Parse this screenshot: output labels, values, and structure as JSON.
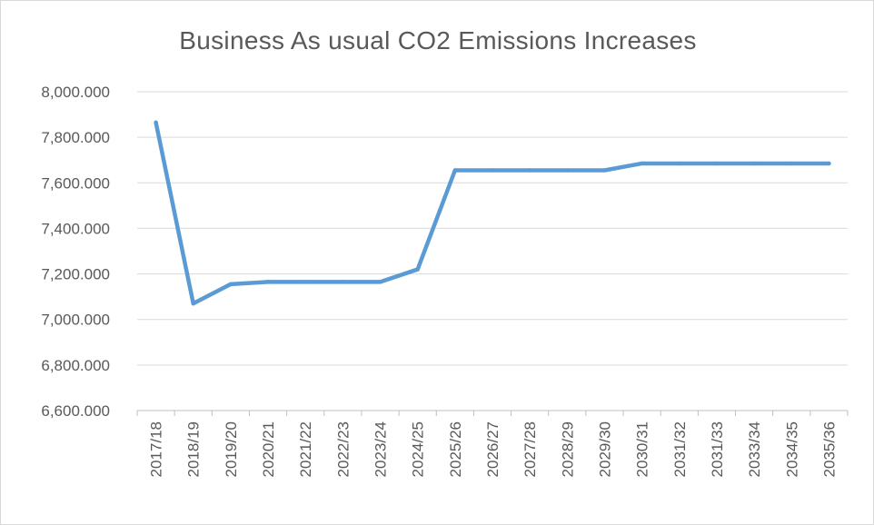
{
  "chart_data": {
    "type": "line",
    "title": "Business As usual CO2 Emissions Increases",
    "xlabel": "",
    "ylabel": "",
    "categories": [
      "2017/18",
      "2018/19",
      "2019/20",
      "2020/21",
      "2021/22",
      "2022/23",
      "2023/24",
      "2024/25",
      "2025/26",
      "2026/27",
      "2027/28",
      "2028/29",
      "2029/30",
      "2030/31",
      "2031/32",
      "2031/33",
      "2033/34",
      "2034/35",
      "2035/36"
    ],
    "series": [
      {
        "values": [
          7865,
          7070,
          7155,
          7165,
          7165,
          7165,
          7165,
          7220,
          7655,
          7655,
          7655,
          7655,
          7655,
          7685,
          7685,
          7685,
          7685,
          7685,
          7685
        ]
      }
    ],
    "ylim": [
      6600,
      8000
    ],
    "yticks": [
      6600,
      6800,
      7000,
      7200,
      7400,
      7600,
      7800,
      8000
    ],
    "ytick_labels": [
      "6,600.000",
      "6,800.000",
      "7,000.000",
      "7,200.000",
      "7,400.000",
      "7,600.000",
      "7,800.000",
      "8,000.000"
    ],
    "grid": true,
    "legend": "none",
    "colors": {
      "line": "#5b9bd5",
      "grid": "#d9d9d9",
      "axis": "#bfbfbf",
      "text": "#595959"
    }
  }
}
